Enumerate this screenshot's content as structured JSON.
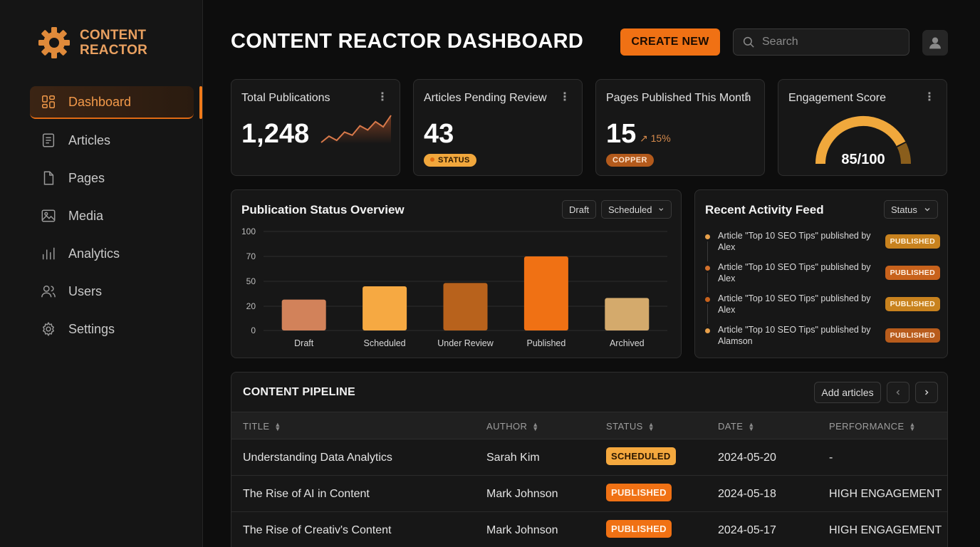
{
  "brand": {
    "line1": "CONTENT",
    "line2": "REACTOR",
    "color": "#e9a060"
  },
  "sidebar": {
    "items": [
      {
        "label": "Dashboard",
        "icon": "dashboard-grid-icon",
        "active": true
      },
      {
        "label": "Articles",
        "icon": "document-icon"
      },
      {
        "label": "Pages",
        "icon": "page-icon"
      },
      {
        "label": "Media",
        "icon": "image-icon"
      },
      {
        "label": "Analytics",
        "icon": "bar-chart-icon"
      },
      {
        "label": "Users",
        "icon": "users-icon"
      },
      {
        "label": "Settings",
        "icon": "gear-icon"
      }
    ]
  },
  "header": {
    "title": "CONTENT REACTOR DASHBOARD",
    "create_label": "CREATE NEW",
    "search_placeholder": "Search",
    "accent": "#f07114"
  },
  "stats": {
    "total": {
      "title": "Total Publications",
      "value": "1,248",
      "trend": [
        20,
        26,
        22,
        30,
        27,
        36,
        32,
        40,
        35,
        46
      ]
    },
    "pending": {
      "title": "Articles Pending Review",
      "value": "43",
      "badge": "STATUS"
    },
    "pages": {
      "title": "Pages Published This Month",
      "value": "15",
      "delta": "↗ 15%",
      "badge": "COPPER"
    },
    "engagement": {
      "title": "Engagement Score",
      "label": "85/100",
      "score": 85,
      "max": 100
    }
  },
  "chart": {
    "title": "Publication Status Overview",
    "filter_draft": "Draft",
    "filter_scheduled": "Scheduled"
  },
  "chart_data": {
    "type": "bar",
    "title": "Publication Status Overview",
    "categories": [
      "Draft",
      "Scheduled",
      "Under Review",
      "Published",
      "Archived"
    ],
    "values": [
      28,
      44,
      48,
      70,
      30
    ],
    "colors": [
      "#d2825a",
      "#f6a942",
      "#b8621c",
      "#f07114",
      "#d4aa6c"
    ],
    "y_ticks": [
      "0",
      "20",
      "50",
      "70",
      "100"
    ],
    "grid": true
  },
  "activity": {
    "title": "Recent Activity Feed",
    "filter": "Status",
    "items": [
      {
        "text": "Article \"Top 10 SEO Tips\" published by Alex",
        "badge": "PUBLISHED",
        "dot": "#e8a04a",
        "badge_bg": "#c8821e",
        "badge_fg": "#fff2dc"
      },
      {
        "text": "Article \"Top 10 SEO Tips\" published by Alex",
        "badge": "PUBLISHED",
        "dot": "#d2712c",
        "badge_bg": "#c8621c",
        "badge_fg": "#fff0e2"
      },
      {
        "text": "Article \"Top 10 SEO Tips\" published by Alex",
        "badge": "PUBLISHED",
        "dot": "#c8621c",
        "badge_bg": "#c8821e",
        "badge_fg": "#fff2dc"
      },
      {
        "text": "Article \"Top 10 SEO Tips\" published by Alamson",
        "badge": "PUBLISHED",
        "dot": "#e8a04a",
        "badge_bg": "#b85c1c",
        "badge_fg": "#fff0e2"
      }
    ]
  },
  "pipeline": {
    "title": "CONTENT PIPELINE",
    "add_label": "Add articles",
    "columns": [
      "TITLE",
      "AUTHOR",
      "STATUS",
      "DATE",
      "PERFORMANCE"
    ],
    "rows": [
      {
        "title": "Understanding Data Analytics",
        "author": "Sarah Kim",
        "status": "SCHEDULED",
        "date": "2024-05-20",
        "performance": "-",
        "status_bg": "#f4a83e",
        "status_fg": "#2a1600"
      },
      {
        "title": "The Rise of AI in Content",
        "author": "Mark Johnson",
        "status": "PUBLISHED",
        "date": "2024-05-18",
        "performance": "HIGH ENGAGEMENT",
        "status_bg": "#f07114",
        "status_fg": "#fff3e6"
      },
      {
        "title": "The Rise of Creativ's Content",
        "author": "Mark Johnson",
        "status": "PUBLISHED",
        "date": "2024-05-17",
        "performance": "HIGH ENGAGEMENT",
        "status_bg": "#f07114",
        "status_fg": "#fff3e6"
      }
    ]
  }
}
